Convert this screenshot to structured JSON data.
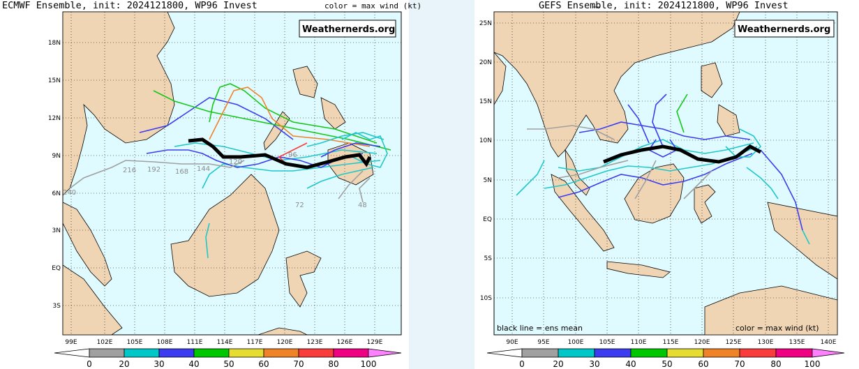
{
  "left_map": {
    "title": "ECMWF Ensemble, init: 2024121800, WP96 Invest",
    "color_note": "color = max wind (kt)",
    "watermark": "Weathernerds.org",
    "lat_labels": [
      "18N",
      "15N",
      "12N",
      "9N",
      "6N",
      "3N",
      "EQ",
      "3S"
    ],
    "lon_labels": [
      "99E",
      "102E",
      "105E",
      "108E",
      "111E",
      "114E",
      "117E",
      "120E",
      "123E",
      "126E",
      "129E"
    ],
    "hour_labels": [
      "216",
      "192",
      "168",
      "144",
      "120",
      "96",
      "72",
      "48",
      "240"
    ]
  },
  "right_map": {
    "title": "GEFS Ensemble, init: 2024121800, WP96 Invest",
    "color_note": "color = max wind (kt)",
    "mean_note": "black line = ens mean",
    "watermark": "Weathernerds.org",
    "lat_labels": [
      "25N",
      "20N",
      "15N",
      "10N",
      "5N",
      "EQ",
      "5S",
      "10S"
    ],
    "lon_labels": [
      "90E",
      "95E",
      "100E",
      "105E",
      "110E",
      "115E",
      "120E",
      "125E",
      "130E",
      "135E",
      "140E"
    ]
  },
  "colorbar": {
    "ticks": [
      "0",
      "20",
      "30",
      "40",
      "50",
      "60",
      "70",
      "80",
      "100"
    ],
    "colors": [
      "#ffffff",
      "#a0a0a0",
      "#00c8c8",
      "#3c3cf0",
      "#00c800",
      "#e6dc32",
      "#f08228",
      "#fa3c3c",
      "#f00082",
      "#ff80ff"
    ]
  },
  "wind_colors": {
    "gray": "#a0a0a0",
    "cyan": "#1ec8c8",
    "blue": "#3c3cf0",
    "green": "#14c814",
    "yellow": "#e6dc32",
    "orange": "#f08228",
    "red": "#fa3c3c",
    "mean": "#000000"
  },
  "map_colors": {
    "ocean": "#dffbff",
    "land": "#efd5b4",
    "coast": "#000000"
  }
}
